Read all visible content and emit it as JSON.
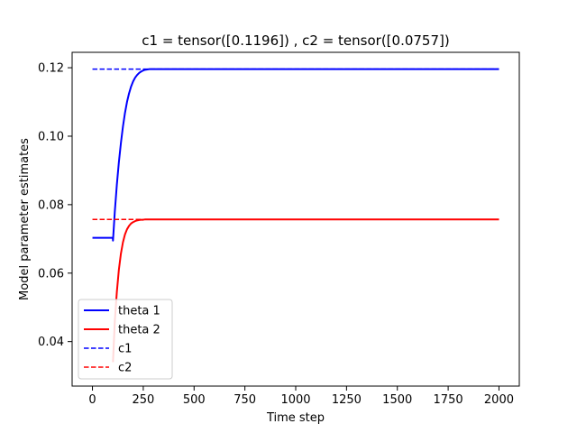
{
  "chart_data": {
    "type": "line",
    "title": "c1 = tensor([0.1196]) , c2 = tensor([0.0757])",
    "xlabel": "Time step",
    "ylabel": "Model parameter estimates",
    "xlim": [
      -100,
      2100
    ],
    "ylim": [
      0.027,
      0.1245
    ],
    "xticks": [
      0,
      250,
      500,
      750,
      1000,
      1250,
      1500,
      1750,
      2000
    ],
    "xtick_labels": [
      "0",
      "250",
      "500",
      "750",
      "1000",
      "1250",
      "1500",
      "1750",
      "2000"
    ],
    "yticks": [
      0.04,
      0.06,
      0.08,
      0.1,
      0.12
    ],
    "ytick_labels": [
      "0.04",
      "0.06",
      "0.08",
      "0.10",
      "0.12"
    ],
    "grid": false,
    "legend_position": "lower-left",
    "series": [
      {
        "name": "theta 1",
        "style": "solid",
        "color": "#0000ff",
        "x": [
          0,
          100,
          101,
          110,
          120,
          130,
          140,
          150,
          160,
          170,
          180,
          190,
          200,
          210,
          220,
          230,
          240,
          250,
          260,
          270,
          280,
          290,
          300,
          320,
          340,
          360,
          400,
          500,
          1000,
          1500,
          2000
        ],
        "y": [
          0.0703,
          0.0703,
          0.0695,
          0.078,
          0.0858,
          0.0924,
          0.098,
          0.1028,
          0.1068,
          0.11,
          0.1125,
          0.1145,
          0.116,
          0.1171,
          0.1179,
          0.1185,
          0.1189,
          0.1192,
          0.1194,
          0.1195,
          0.1196,
          0.1196,
          0.1196,
          0.1196,
          0.1196,
          0.1196,
          0.1196,
          0.1196,
          0.1196,
          0.1196,
          0.1196
        ]
      },
      {
        "name": "theta 2",
        "style": "solid",
        "color": "#ff0000",
        "x": [
          101,
          110,
          120,
          130,
          140,
          150,
          160,
          170,
          180,
          190,
          200,
          210,
          220,
          230,
          240,
          250,
          260,
          270,
          280,
          290,
          300,
          320,
          340,
          360,
          400,
          500,
          1000,
          1500,
          2000
        ],
        "y": [
          0.034,
          0.046,
          0.0545,
          0.061,
          0.0657,
          0.069,
          0.0713,
          0.0728,
          0.0738,
          0.0745,
          0.0749,
          0.0752,
          0.0754,
          0.0755,
          0.0756,
          0.0756,
          0.0757,
          0.0757,
          0.0757,
          0.0757,
          0.0757,
          0.0757,
          0.0757,
          0.0757,
          0.0757,
          0.0757,
          0.0757,
          0.0757,
          0.0757
        ]
      },
      {
        "name": "c1",
        "style": "dashed",
        "color": "#0000ff",
        "x": [
          0,
          2000
        ],
        "y": [
          0.1196,
          0.1196
        ]
      },
      {
        "name": "c2",
        "style": "dashed",
        "color": "#ff0000",
        "x": [
          0,
          2000
        ],
        "y": [
          0.0757,
          0.0757
        ]
      }
    ]
  }
}
